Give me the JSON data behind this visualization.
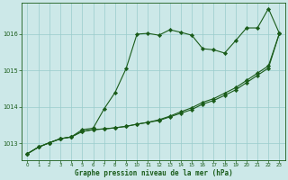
{
  "title": "Graphe pression niveau de la mer (hPa)",
  "bg_color": "#cce8e8",
  "grid_color": "#99cccc",
  "line_color": "#1a5c1a",
  "xlim": [
    -0.5,
    23.5
  ],
  "ylim": [
    1012.55,
    1016.85
  ],
  "yticks": [
    1013,
    1014,
    1015,
    1016
  ],
  "xticks": [
    0,
    1,
    2,
    3,
    4,
    5,
    6,
    7,
    8,
    9,
    10,
    11,
    12,
    13,
    14,
    15,
    16,
    17,
    18,
    19,
    20,
    21,
    22,
    23
  ],
  "s1": [
    1012.72,
    1012.9,
    1013.02,
    1013.13,
    1013.18,
    1013.38,
    1013.42,
    1013.95,
    1014.4,
    1015.05,
    1016.0,
    1016.02,
    1015.97,
    1016.12,
    1016.05,
    1015.97,
    1015.6,
    1015.57,
    1015.48,
    1015.82,
    1016.17,
    1016.17,
    1016.7,
    1016.02
  ],
  "s2": [
    1012.72,
    1012.9,
    1013.02,
    1013.13,
    1013.18,
    1013.33,
    1013.38,
    1013.4,
    1013.43,
    1013.47,
    1013.53,
    1013.58,
    1013.63,
    1013.73,
    1013.83,
    1013.93,
    1014.08,
    1014.18,
    1014.32,
    1014.47,
    1014.67,
    1014.87,
    1015.07,
    1016.02
  ],
  "s3": [
    1012.72,
    1012.9,
    1013.02,
    1013.13,
    1013.18,
    1013.33,
    1013.38,
    1013.4,
    1013.43,
    1013.47,
    1013.53,
    1013.58,
    1013.65,
    1013.75,
    1013.87,
    1013.98,
    1014.13,
    1014.23,
    1014.38,
    1014.53,
    1014.73,
    1014.93,
    1015.13,
    1016.02
  ]
}
